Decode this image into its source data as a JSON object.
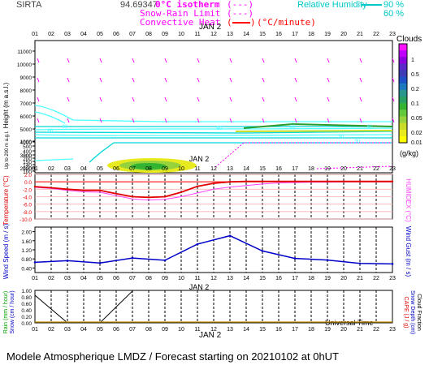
{
  "header": {
    "station": "SIRTA",
    "coord": "94.69347",
    "leg_zero": "0°C isotherm",
    "leg_snow": "Snow-Rain Limit",
    "leg_conv": "Convective Heat",
    "leg_units": "(°C/minute)",
    "leg_rh_label": "Relative Humidity",
    "leg_rh90": "90 %",
    "leg_rh60": "60 %"
  },
  "colors": {
    "rh90": "#00d8d8",
    "rh60": "#4dffff",
    "zero": "#ff00ff",
    "snow": "#ff00ff",
    "conv": "#ff0000",
    "temp": "#e00000",
    "humidex": "#ff44ff",
    "wind": "#0000c8",
    "precip": "#000000"
  },
  "hours": [
    "01",
    "02",
    "03",
    "04",
    "05",
    "06",
    "07",
    "08",
    "09",
    "10",
    "11",
    "12",
    "13",
    "14",
    "15",
    "16",
    "17",
    "18",
    "19",
    "20",
    "21",
    "22",
    "23"
  ],
  "date": "JAN  2",
  "cloud_scale": {
    "title": "Clouds",
    "units": "(g/kg)",
    "labels": [
      "1",
      "0.5",
      "0.2",
      "0.1",
      "0.05",
      "0.02",
      "0.01"
    ],
    "colors": [
      "#ff10ff",
      "#c000ff",
      "#8c00e0",
      "#5a28c8",
      "#3c3cb4",
      "#1e50c8",
      "#1e78c0",
      "#28968c",
      "#28a064",
      "#32b432",
      "#64c83c",
      "#96d23c",
      "#c8dc28",
      "#e6ea1e",
      "#ffff00"
    ]
  },
  "panel_labels": {
    "height": "Height (m a.s.l.)",
    "lowlevel": "Up to 200 m a.g.l.",
    "temperature": "Temperature (°C)",
    "humidex": "HUMIDEX (°C)",
    "wind_speed": "Wind Speed (m / s)",
    "wind_gust": "Wind Gust (m / s)",
    "rain": "Rain (mm / hour)",
    "snow": "Snow (cm / hour)",
    "cape": "CAPE (J / g)",
    "snow_depth": "Snow Depth (cm)",
    "cloud_fraction": "Cloud Fraction",
    "universal_time": "Universal Time"
  },
  "footer": "Modele Atmospherique LMDZ / Forecast starting on 20210102 at 0hUT",
  "chart_data": [
    {
      "type": "area",
      "name": "height",
      "y_ticks": [
        "11000",
        "10000",
        "9000",
        "8000",
        "7000",
        "6000",
        "5000",
        "4000",
        "3000",
        "2000",
        "1000",
        "500",
        "400",
        "300",
        "200",
        "150",
        "140",
        "120",
        "100"
      ],
      "iso_labels": [
        "60",
        "90",
        "90",
        "60",
        "90",
        "90",
        "60"
      ]
    },
    {
      "type": "line",
      "name": "temperature",
      "y_ticks": [
        "2.0",
        "0.0",
        "-2.0",
        "-4.0",
        "-6.0",
        "-8.0",
        "-10.0"
      ],
      "ylim": [
        -10,
        2
      ],
      "x": [
        1,
        2,
        3,
        4,
        5,
        6,
        7,
        8,
        9,
        10,
        11,
        12,
        13,
        14,
        15,
        16,
        17,
        18,
        19,
        20,
        21,
        22,
        23
      ],
      "series": [
        {
          "values": [
            -1.3,
            -1.6,
            -2.0,
            -2.3,
            -2.3,
            -3.2,
            -4.0,
            -4.2,
            -4.0,
            -2.8,
            -1.2,
            -0.4,
            0.0,
            0.1,
            0.1,
            0.1,
            0.1,
            0.1,
            0.1,
            0.1,
            0.1,
            0.1,
            0.1
          ]
        },
        {
          "values": [
            -1.5,
            -1.8,
            -2.3,
            -2.7,
            -2.8,
            -3.7,
            -4.6,
            -4.9,
            -4.7,
            -4.0,
            -3.0,
            -2.0,
            -1.4,
            -1.0,
            -0.6,
            -0.3,
            -0.2,
            -0.1,
            -0.1,
            0,
            0,
            0,
            0
          ]
        }
      ]
    },
    {
      "type": "line",
      "name": "wind",
      "y_ticks": [
        "2.00",
        "1.60",
        "1.20",
        "0.80",
        "0.40"
      ],
      "ylim": [
        0.2,
        2.2
      ],
      "x": [
        1,
        3,
        5,
        7,
        9,
        11,
        13,
        15,
        17,
        19,
        21,
        23
      ],
      "series": [
        {
          "values": [
            0.65,
            0.72,
            0.62,
            0.84,
            0.74,
            1.45,
            1.82,
            1.15,
            0.82,
            0.75,
            0.6,
            0.58
          ]
        }
      ]
    },
    {
      "type": "line",
      "name": "precipitation",
      "y_ticks": [
        "1.00",
        "0.80",
        "0.60",
        "0.40",
        "0.20",
        "0.00"
      ],
      "ylim": [
        0,
        1
      ],
      "x": [
        1,
        3,
        5,
        7
      ],
      "series": [
        {
          "values": [
            0.85,
            0.0,
            0.0,
            0.98
          ]
        }
      ]
    }
  ]
}
